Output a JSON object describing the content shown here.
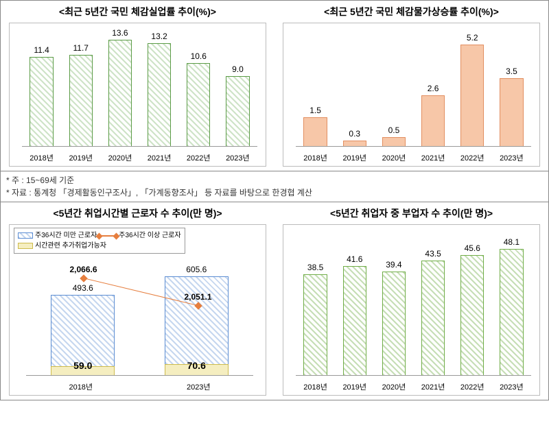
{
  "panel1": {
    "title": "<최근 5년간 국민 체감실업률 추이(%)>",
    "type": "bar",
    "categories": [
      "2018년",
      "2019년",
      "2020년",
      "2021년",
      "2022년",
      "2023년"
    ],
    "values": [
      11.4,
      11.7,
      13.6,
      13.2,
      10.6,
      9.0
    ],
    "ymax": 15,
    "bar_color": "#b7d8a6",
    "border_color": "#5a9b45",
    "bar_width_pct": 10
  },
  "panel2": {
    "title": "<최근 5년간 국민 체감물가상승률 추이(%)>",
    "type": "bar",
    "categories": [
      "2018년",
      "2019년",
      "2020년",
      "2021년",
      "2022년",
      "2023년"
    ],
    "values": [
      1.5,
      0.3,
      0.5,
      2.6,
      5.2,
      3.5
    ],
    "ymax": 6,
    "bar_color": "#f7c7a8",
    "border_color": "#e28e5f",
    "bar_width_pct": 10
  },
  "notes": {
    "line1": "* 주 : 15~69세 기준",
    "line2": "* 자료 : 통계청 「경제활동인구조사」, 「가계동향조사」 등 자료를 바탕으로 한경협 계산"
  },
  "panel3": {
    "title": "<5년간 취업시간별 근로자 수 추이(만 명)>",
    "legend": {
      "series_a": "주36시간 미만 근로자",
      "series_b": "주36시간 이상 근로자",
      "series_c": "시간관련 추가취업가능자"
    },
    "categories": [
      "2018년",
      "2023년"
    ],
    "bars_total": [
      493.6,
      605.6
    ],
    "bars_inner": [
      59.0,
      70.6
    ],
    "line_values": [
      2066.6,
      2051.1
    ],
    "line_labels": [
      "2,066.6",
      "2,051.1"
    ],
    "ymax_bar": 700,
    "line_color": "#e67e3e",
    "bar_outer_color": "#5a8cd2",
    "bar_inner_color": "#f5eec0",
    "bar_width_pct": 28
  },
  "panel4": {
    "title": "<5년간 취업자 중 부업자 수 추이(만 명)>",
    "type": "bar",
    "categories": [
      "2018년",
      "2019년",
      "2020년",
      "2021년",
      "2022년",
      "2023년"
    ],
    "values": [
      38.5,
      41.6,
      39.4,
      43.5,
      45.6,
      48.1
    ],
    "ymax": 55,
    "bar_color": "#b7d8a6",
    "border_color": "#70ad47",
    "bar_width_pct": 10
  }
}
